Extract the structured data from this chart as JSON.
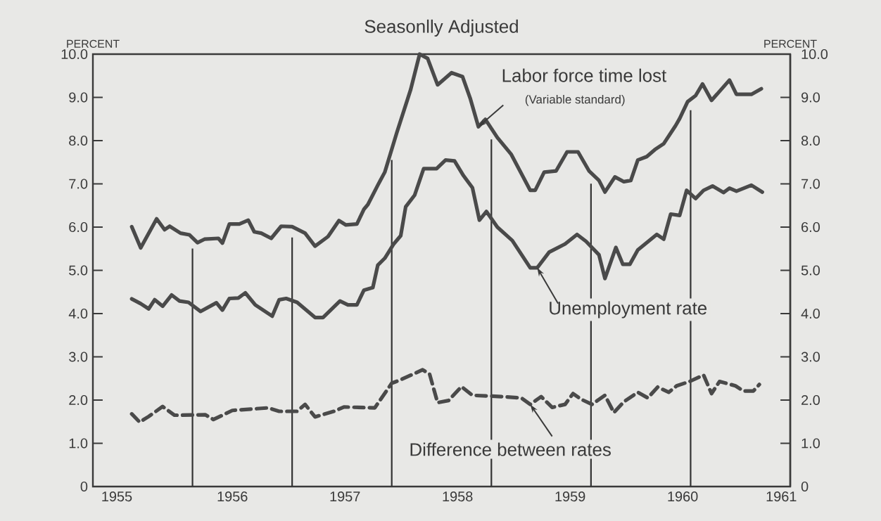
{
  "chart_data": {
    "type": "line",
    "title": "Seasonlly Adjusted",
    "ylabel": "PERCENT",
    "y2label": "PERCENT",
    "xlim": [
      1954.5,
      1961.5
    ],
    "xticks": [
      {
        "value": 1954.74,
        "label": "1955"
      },
      {
        "value": 1955.9,
        "label": "1956"
      },
      {
        "value": 1957.03,
        "label": "1957"
      },
      {
        "value": 1958.16,
        "label": "1958"
      },
      {
        "value": 1959.29,
        "label": "1959"
      },
      {
        "value": 1960.42,
        "label": "1960"
      },
      {
        "value": 1961.41,
        "label": "1961"
      }
    ],
    "ylim": [
      0,
      10
    ],
    "yticks": [
      0,
      {
        "value": 1,
        "label": "1.0"
      },
      {
        "value": 2,
        "label": "2.0"
      },
      {
        "value": 3,
        "label": "3.0"
      },
      {
        "value": 4,
        "label": "4.0"
      },
      {
        "value": 5,
        "label": "5.0"
      },
      {
        "value": 6,
        "label": "6.0"
      },
      {
        "value": 7,
        "label": "7.0"
      },
      {
        "value": 8,
        "label": "8.0"
      },
      {
        "value": 9,
        "label": "9.0"
      },
      {
        "value": 10,
        "label": "10.0"
      }
    ],
    "y2lim": [
      0,
      10
    ],
    "y2ticks": [
      0,
      {
        "value": 1,
        "label": "1.0"
      },
      {
        "value": 2,
        "label": "2.0"
      },
      {
        "value": 3,
        "label": "3.0"
      },
      {
        "value": 4,
        "label": "4.0"
      },
      {
        "value": 5,
        "label": "5.0"
      },
      {
        "value": 6,
        "label": "6.0"
      },
      {
        "value": 7,
        "label": "7.0"
      },
      {
        "value": 8,
        "label": "8.0"
      },
      {
        "value": 9,
        "label": "9.0"
      },
      {
        "value": 10,
        "label": "10.0"
      }
    ],
    "marker": "none",
    "series": [
      {
        "color": "#4a4a4a",
        "line_style": "solid",
        "x": [
          1954.89,
          1954.98,
          1955.14,
          1955.22,
          1955.27,
          1955.38,
          1955.47,
          1955.55,
          1955.62,
          1955.76,
          1955.8,
          1955.87,
          1955.97,
          1956.06,
          1956.12,
          1956.19,
          1956.29,
          1956.39,
          1956.5,
          1956.63,
          1956.73,
          1956.86,
          1956.97,
          1957.04,
          1957.15,
          1957.22,
          1957.26,
          1957.36,
          1957.43,
          1957.55,
          1957.69,
          1957.78,
          1957.86,
          1957.96,
          1958.1,
          1958.21,
          1958.29,
          1958.37,
          1958.44,
          1958.56,
          1958.7,
          1958.89,
          1958.94,
          1959.03,
          1959.15,
          1959.26,
          1959.37,
          1959.48,
          1959.58,
          1959.64,
          1959.74,
          1959.83,
          1959.9,
          1959.97,
          1960.06,
          1960.14,
          1960.23,
          1960.35,
          1960.39,
          1960.47,
          1960.55,
          1960.62,
          1960.71,
          1960.89,
          1960.96,
          1961.11,
          1961.21
        ],
        "values": [
          6.01,
          5.52,
          6.19,
          5.94,
          6.02,
          5.86,
          5.82,
          5.64,
          5.72,
          5.74,
          5.63,
          6.07,
          6.07,
          6.16,
          5.89,
          5.86,
          5.74,
          6.02,
          6.01,
          5.86,
          5.56,
          5.78,
          6.15,
          6.05,
          6.07,
          6.41,
          6.52,
          6.97,
          7.27,
          8.18,
          9.18,
          10.0,
          9.9,
          9.29,
          9.57,
          9.48,
          8.96,
          8.32,
          8.49,
          8.07,
          7.68,
          6.85,
          6.85,
          7.27,
          7.3,
          7.74,
          7.74,
          7.3,
          7.08,
          6.81,
          7.16,
          7.05,
          7.08,
          7.55,
          7.63,
          7.79,
          7.93,
          8.35,
          8.51,
          8.9,
          9.04,
          9.31,
          8.93,
          9.4,
          9.07,
          9.07,
          9.2
        ]
      },
      {
        "color": "#4a4a4a",
        "line_style": "solid",
        "x": [
          1954.89,
          1954.98,
          1955.06,
          1955.12,
          1955.2,
          1955.29,
          1955.37,
          1955.46,
          1955.58,
          1955.74,
          1955.8,
          1955.87,
          1955.96,
          1956.03,
          1956.13,
          1956.3,
          1956.37,
          1956.44,
          1956.55,
          1956.73,
          1956.81,
          1956.98,
          1957.06,
          1957.15,
          1957.22,
          1957.31,
          1957.36,
          1957.43,
          1957.52,
          1957.59,
          1957.64,
          1957.73,
          1957.82,
          1957.95,
          1958.04,
          1958.13,
          1958.22,
          1958.31,
          1958.38,
          1958.45,
          1958.56,
          1958.71,
          1958.89,
          1958.96,
          1959.08,
          1959.24,
          1959.36,
          1959.45,
          1959.58,
          1959.64,
          1959.75,
          1959.82,
          1959.89,
          1959.97,
          1960.16,
          1960.23,
          1960.3,
          1960.39,
          1960.46,
          1960.55,
          1960.63,
          1960.72,
          1960.83,
          1960.89,
          1960.96,
          1961.11,
          1961.22
        ],
        "values": [
          4.34,
          4.23,
          4.11,
          4.32,
          4.17,
          4.43,
          4.29,
          4.26,
          4.05,
          4.25,
          4.08,
          4.35,
          4.36,
          4.48,
          4.2,
          3.94,
          4.32,
          4.35,
          4.26,
          3.91,
          3.91,
          4.29,
          4.2,
          4.2,
          4.54,
          4.6,
          5.12,
          5.28,
          5.61,
          5.8,
          6.47,
          6.74,
          7.35,
          7.35,
          7.55,
          7.53,
          7.19,
          6.91,
          6.16,
          6.36,
          6.0,
          5.69,
          5.06,
          5.06,
          5.42,
          5.61,
          5.83,
          5.67,
          5.36,
          4.81,
          5.53,
          5.14,
          5.14,
          5.47,
          5.83,
          5.72,
          6.3,
          6.27,
          6.85,
          6.66,
          6.85,
          6.95,
          6.8,
          6.9,
          6.83,
          6.97,
          6.81
        ]
      },
      {
        "color": "#4a4a4a",
        "line_style": "dashed",
        "x": [
          1954.89,
          1954.97,
          1955.06,
          1955.2,
          1955.32,
          1955.63,
          1955.71,
          1955.9,
          1956.26,
          1956.37,
          1956.55,
          1956.63,
          1956.73,
          1956.92,
          1957.02,
          1957.33,
          1957.5,
          1957.57,
          1957.81,
          1957.88,
          1957.96,
          1958.07,
          1958.2,
          1958.31,
          1958.6,
          1958.8,
          1958.89,
          1959.0,
          1959.11,
          1959.24,
          1959.32,
          1959.4,
          1959.51,
          1959.64,
          1959.73,
          1959.83,
          1959.97,
          1960.07,
          1960.17,
          1960.28,
          1960.36,
          1960.49,
          1960.63,
          1960.71,
          1960.79,
          1960.95,
          1961.03,
          1961.13,
          1961.19
        ],
        "values": [
          1.68,
          1.49,
          1.62,
          1.85,
          1.65,
          1.66,
          1.55,
          1.76,
          1.82,
          1.74,
          1.74,
          1.9,
          1.61,
          1.74,
          1.84,
          1.82,
          2.39,
          2.45,
          2.7,
          2.6,
          1.94,
          1.99,
          2.31,
          2.11,
          2.08,
          2.05,
          1.9,
          2.08,
          1.83,
          1.9,
          2.15,
          2.02,
          1.9,
          2.11,
          1.71,
          1.96,
          2.18,
          2.05,
          2.3,
          2.18,
          2.33,
          2.43,
          2.58,
          2.15,
          2.43,
          2.33,
          2.21,
          2.21,
          2.36
        ]
      }
    ],
    "ref_lines": [
      {
        "axis": "x",
        "value": 1955.5,
        "color": "#333333"
      },
      {
        "axis": "x",
        "value": 1956.5,
        "color": "#333333"
      },
      {
        "axis": "x",
        "value": 1957.5,
        "color": "#333333"
      },
      {
        "axis": "x",
        "value": 1958.5,
        "color": "#333333"
      },
      {
        "axis": "x",
        "value": 1959.5,
        "color": "#333333"
      },
      {
        "axis": "x",
        "value": 1960.5,
        "color": "#333333"
      }
    ],
    "annotations": [
      {
        "text": "Labor force time lost",
        "x": 1958.37,
        "y": 8.32
      },
      "(Variable standard)",
      {
        "text": "Unemployment rate",
        "x": 1958.96,
        "y": 5.06
      },
      {
        "text": "Difference between rates",
        "x": 1958.89,
        "y": 1.9
      }
    ]
  }
}
